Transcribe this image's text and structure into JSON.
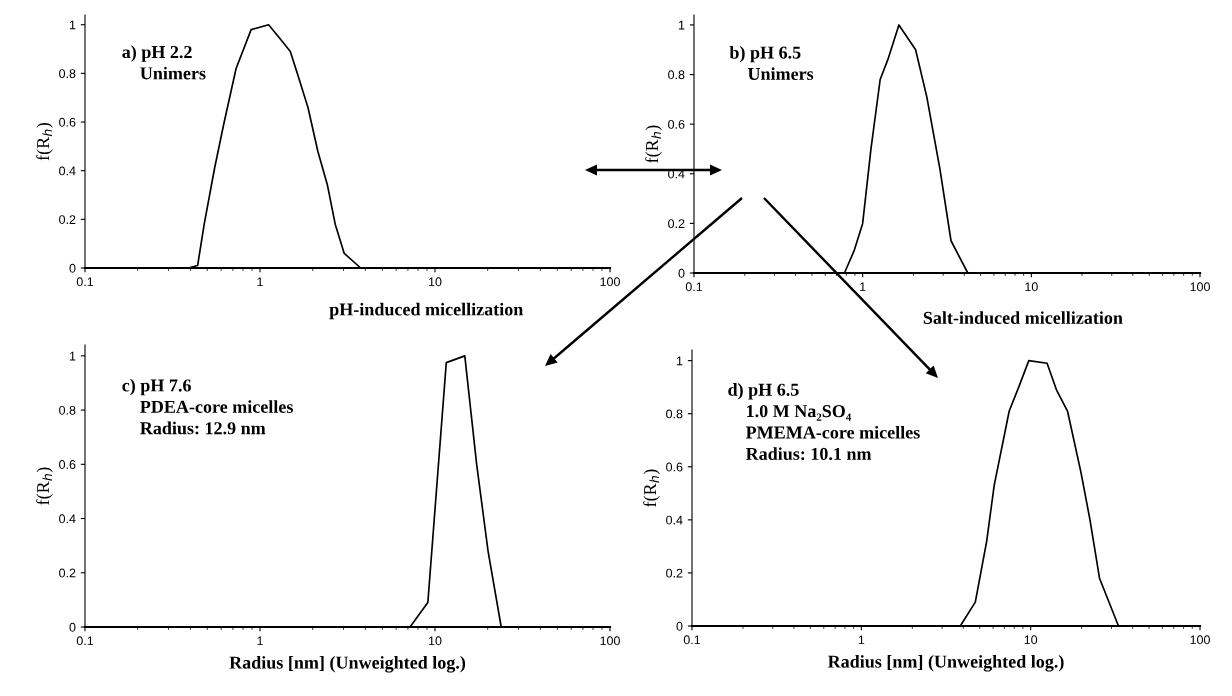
{
  "chart_data": [
    {
      "type": "line",
      "ylabel": "f(R$_{h}$)",
      "log": "x",
      "xlim": [
        0.1,
        100
      ],
      "xticks": [
        0.1,
        1,
        10,
        100
      ],
      "ylim": [
        0,
        1.04
      ],
      "yticks": [
        0,
        0.2,
        0.4,
        0.6,
        0.8,
        1
      ],
      "line_style": "solid",
      "grid": false,
      "annotations": [
        "a) pH 2.2\n    Unimers",
        "pH-induced micellization"
      ],
      "series": [
        {
          "color": "#000000",
          "x": [
            0.1,
            0.39,
            0.44,
            0.48,
            0.55,
            0.62,
            0.73,
            0.89,
            1.12,
            1.31,
            1.49,
            1.65,
            1.88,
            2.14,
            2.43,
            2.69,
            3.03,
            3.76,
            85.7
          ],
          "values": [
            0,
            0,
            0.01,
            0.18,
            0.41,
            0.59,
            0.82,
            0.98,
            1.0,
            0.94,
            0.89,
            0.79,
            0.66,
            0.48,
            0.34,
            0.18,
            0.06,
            0,
            0
          ]
        }
      ]
    },
    {
      "type": "line",
      "ylabel": "f(R$_{h}$)",
      "log": "x",
      "xlim": [
        0.1,
        100
      ],
      "xticks": [
        0.1,
        1,
        10,
        100
      ],
      "ylim": [
        0,
        1.04
      ],
      "yticks": [
        0,
        0.2,
        0.4,
        0.6,
        0.8,
        1
      ],
      "line_style": "solid",
      "grid": false,
      "annotations": [
        "b) pH 6.5\n    Unimers",
        "Salt-induced micellization"
      ],
      "series": [
        {
          "color": "#000000",
          "x": [
            0.1,
            0.78,
            0.89,
            1.0,
            1.12,
            1.27,
            1.41,
            1.64,
            2.06,
            2.4,
            2.87,
            3.34,
            4.2,
            93
          ],
          "values": [
            0,
            0,
            0.09,
            0.2,
            0.5,
            0.78,
            0.86,
            1.0,
            0.9,
            0.71,
            0.42,
            0.13,
            0,
            0
          ]
        }
      ]
    },
    {
      "type": "line",
      "xlabel": "Radius [nm] (Unweighted log.)",
      "ylabel": "f(R$_{h}$)",
      "log": "x",
      "xlim": [
        0.1,
        100
      ],
      "xticks": [
        0.1,
        1,
        10,
        100
      ],
      "ylim": [
        0,
        1.04
      ],
      "yticks": [
        0,
        0.2,
        0.4,
        0.6,
        0.8,
        1
      ],
      "line_style": "solid",
      "grid": false,
      "annotations": [
        "c) pH 7.6\n    PDEA-core micelles\n    Radius: 12.9 nm"
      ],
      "series": [
        {
          "color": "#000000",
          "x": [
            0.1,
            7.2,
            9.1,
            11.6,
            14.8,
            17.3,
            20.1,
            23.9,
            78.5
          ],
          "values": [
            0,
            0,
            0.09,
            0.975,
            1.0,
            0.6,
            0.28,
            0,
            0
          ]
        }
      ]
    },
    {
      "type": "line",
      "xlabel": "Radius [nm] (Unweighted log.)",
      "ylabel": "f(R$_{h}$)",
      "log": "x",
      "xlim": [
        0.1,
        100
      ],
      "xticks": [
        0.1,
        1,
        10,
        100
      ],
      "ylim": [
        0,
        1.04
      ],
      "yticks": [
        0,
        0.2,
        0.4,
        0.6,
        0.8,
        1
      ],
      "line_style": "solid",
      "grid": false,
      "annotations": [
        "d) pH 6.5\n    1.0 M Na₂SO₄\n    PMEMA-core micelles\n    Radius: 10.1 nm"
      ],
      "series": [
        {
          "color": "#000000",
          "x": [
            0.1,
            3.84,
            4.71,
            5.5,
            6.09,
            7.47,
            8.5,
            9.75,
            12.5,
            14.2,
            16.5,
            19.8,
            22.4,
            25.5,
            33,
            85
          ],
          "values": [
            0,
            0,
            0.09,
            0.32,
            0.53,
            0.81,
            0.9,
            1.0,
            0.99,
            0.89,
            0.81,
            0.58,
            0.4,
            0.18,
            0,
            0
          ]
        }
      ]
    }
  ]
}
